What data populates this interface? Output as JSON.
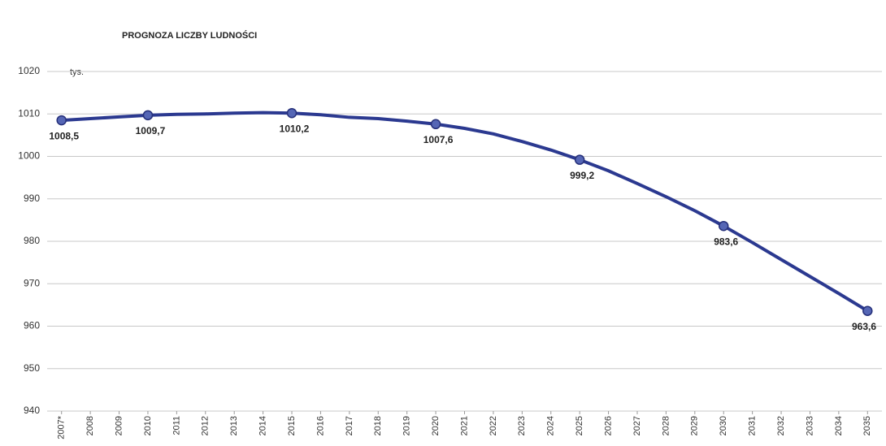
{
  "chart_data": {
    "type": "line",
    "title": "PROGNOZA LICZBY LUDNOŚCI",
    "y_unit": "tys.",
    "categories": [
      "2007*",
      "2008",
      "2009",
      "2010",
      "2011",
      "2012",
      "2013",
      "2014",
      "2015",
      "2016",
      "2017",
      "2018",
      "2019",
      "2020",
      "2021",
      "2022",
      "2023",
      "2024",
      "2025",
      "2026",
      "2027",
      "2028",
      "2029",
      "2030",
      "2031",
      "2032",
      "2033",
      "2034",
      "2035"
    ],
    "values": [
      1008.5,
      1008.9,
      1009.3,
      1009.7,
      1009.9,
      1010.0,
      1010.2,
      1010.3,
      1010.2,
      1009.8,
      1009.2,
      1008.9,
      1008.3,
      1007.6,
      1006.6,
      1005.3,
      1003.5,
      1001.5,
      999.2,
      996.6,
      993.6,
      990.5,
      987.2,
      983.6,
      979.7,
      975.7,
      971.7,
      967.7,
      963.6
    ],
    "value_labels": [
      "1008,5",
      null,
      null,
      "1009,7",
      null,
      null,
      null,
      null,
      "1010,2",
      null,
      null,
      null,
      null,
      "1007,6",
      null,
      null,
      null,
      null,
      "999,2",
      null,
      null,
      null,
      null,
      "983,6",
      null,
      null,
      null,
      null,
      "963,6"
    ],
    "color": "#2b3990",
    "ylim": [
      940,
      1020
    ],
    "yticks": [
      940,
      950,
      960,
      970,
      980,
      990,
      1000,
      1010,
      1020
    ],
    "grid": true
  }
}
